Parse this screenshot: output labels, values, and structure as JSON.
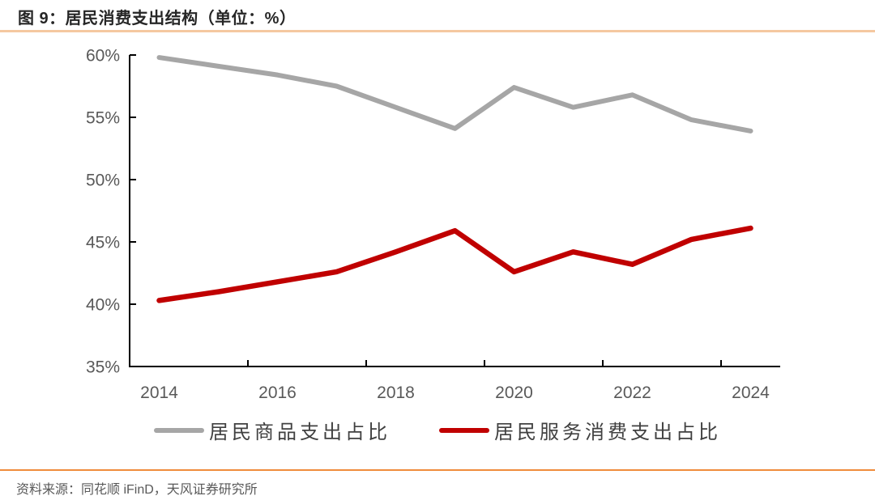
{
  "header": {
    "title": "图 9：居民消费支出结构（单位：%）"
  },
  "chart_data": {
    "type": "line",
    "title": "图 9：居民消费支出结构（单位：%）",
    "categories": [
      "2014",
      "2015",
      "2016",
      "2017",
      "2018",
      "2019",
      "2020",
      "2021",
      "2022",
      "2023",
      "2024"
    ],
    "series": [
      {
        "name": "居民商品支出占比",
        "color": "#A6A6A6",
        "values": [
          59.8,
          59.1,
          58.4,
          57.5,
          55.8,
          54.1,
          57.4,
          55.8,
          56.8,
          54.8,
          53.9
        ]
      },
      {
        "name": "居民服务消费支出占比",
        "color": "#C00000",
        "values": [
          40.3,
          41.0,
          41.8,
          42.6,
          44.2,
          45.9,
          42.6,
          44.2,
          43.2,
          45.2,
          46.1
        ]
      }
    ],
    "ylim": [
      35,
      60
    ],
    "ytick_interval": 5,
    "ytick_labels": [
      "60%",
      "55%",
      "50%",
      "45%",
      "40%",
      "35%"
    ],
    "xtick_labels": [
      "2014",
      "2016",
      "2018",
      "2020",
      "2022",
      "2024"
    ],
    "grid": false,
    "legend_position": "bottom",
    "unit": "%"
  },
  "footer": {
    "source": "资料来源：同花顺 iFinD，天风证券研究所"
  },
  "colors": {
    "title_text": "#262626",
    "title_divider": "#F5C8A0",
    "footer_divider": "#F08C3C",
    "axis": "#000000",
    "axis_label": "#595959",
    "legend_text": "#404040",
    "footer_text": "#595959"
  }
}
